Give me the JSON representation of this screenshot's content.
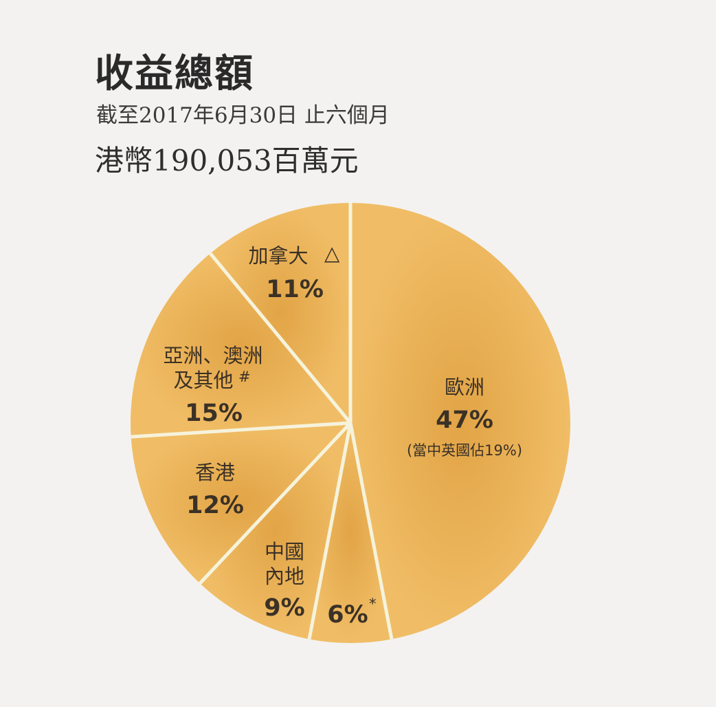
{
  "header": {
    "title": "收益總額",
    "subtitle": "截至2017年6月30日 止六個月",
    "total": "港幣190,053百萬元"
  },
  "chart_data": {
    "type": "pie",
    "title": "收益總額",
    "slices": [
      {
        "name": "歐洲",
        "value": 47,
        "label": "47%",
        "note": "(當中英國佔19%)"
      },
      {
        "name": "",
        "value": 6,
        "label": "6%",
        "mark": "*"
      },
      {
        "name": "中國內地",
        "value": 9,
        "label": "9%"
      },
      {
        "name": "香港",
        "value": 12,
        "label": "12%"
      },
      {
        "name": "亞洲、澳洲及其他",
        "value": 15,
        "label": "15%",
        "mark": "#"
      },
      {
        "name": "加拿大",
        "value": 11,
        "label": "11%",
        "mark": "△"
      }
    ],
    "colors": {
      "slice": "#eeb75e",
      "slice_center": "#e3a84a",
      "divider": "#f6f3dc"
    }
  }
}
